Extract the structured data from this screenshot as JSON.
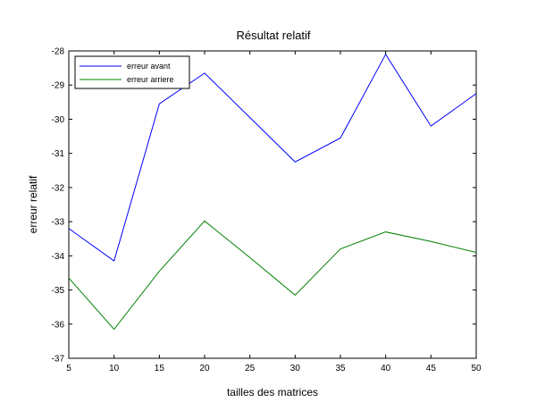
{
  "chart_data": {
    "type": "line",
    "title": "Résultat relatif",
    "xlabel": "tailles des  matrices",
    "ylabel": "erreur relatif",
    "x": [
      5,
      10,
      15,
      20,
      25,
      30,
      35,
      40,
      45,
      50
    ],
    "series": [
      {
        "name": "erreur avant",
        "color": "#0000ff",
        "values": [
          -33.2,
          -34.15,
          -29.55,
          -28.65,
          -29.95,
          -31.25,
          -30.55,
          -28.1,
          -30.2,
          -29.25
        ]
      },
      {
        "name": "erreur arriere",
        "color": "#008000",
        "values": [
          -34.65,
          -36.15,
          -34.45,
          -32.98,
          -34.05,
          -35.15,
          -33.8,
          -33.3,
          -33.58,
          -33.9
        ]
      }
    ],
    "xlim": [
      5,
      50
    ],
    "ylim": [
      -37,
      -28
    ],
    "xticks": [
      5,
      10,
      15,
      20,
      25,
      30,
      35,
      40,
      45,
      50
    ],
    "yticks": [
      -37,
      -36,
      -35,
      -34,
      -33,
      -32,
      -31,
      -30,
      -29,
      -28
    ],
    "grid": false,
    "legend_position": "top-left"
  }
}
